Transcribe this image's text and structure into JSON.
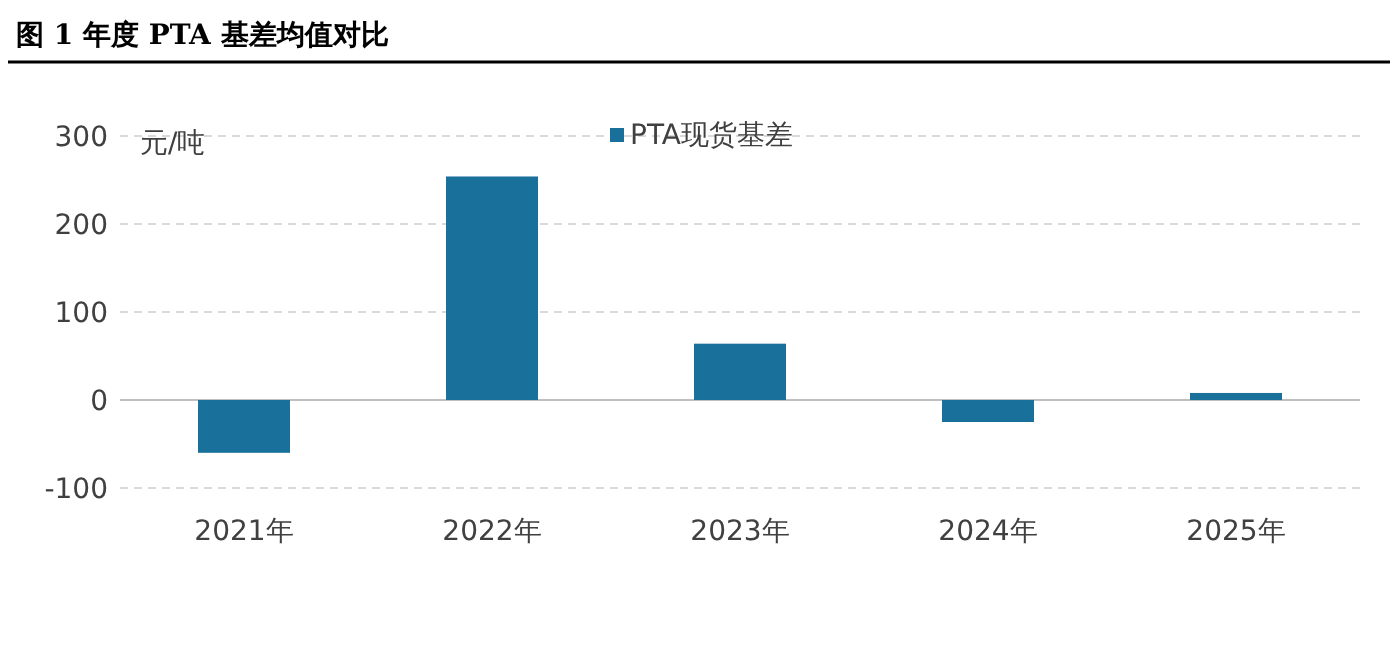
{
  "chart_data": {
    "type": "bar",
    "title": "图 1 年度 PTA 基差均值对比",
    "ylabel": "元/吨",
    "categories": [
      "2021年",
      "2022年",
      "2023年",
      "2024年",
      "2025年"
    ],
    "series": [
      {
        "name": "PTA现货基差",
        "color": "#19709a",
        "values": [
          -60,
          254,
          64,
          -25,
          8
        ]
      }
    ],
    "ylim": [
      -100,
      300
    ],
    "yticks": [
      -100,
      0,
      100,
      200,
      300
    ],
    "grid": "y",
    "legend": "top"
  }
}
